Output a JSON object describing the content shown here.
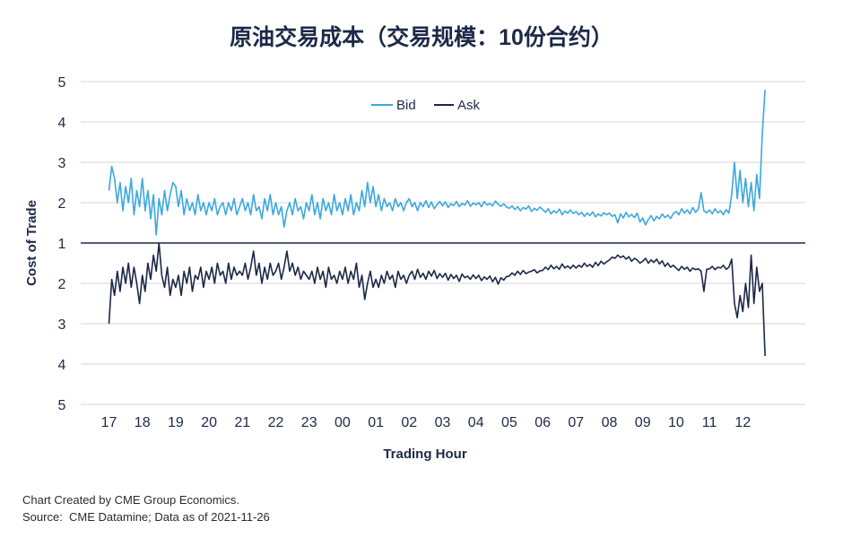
{
  "chart_data": {
    "type": "line",
    "title": "原油交易成本（交易规模：10份合约）",
    "xlabel": "Trading Hour",
    "ylabel": "Cost of Trade",
    "x_tick_labels": [
      "17",
      "18",
      "19",
      "20",
      "21",
      "22",
      "23",
      "00",
      "01",
      "02",
      "03",
      "04",
      "05",
      "06",
      "07",
      "08",
      "09",
      "10",
      "11",
      "12"
    ],
    "y_tick_labels": [
      "5",
      "4",
      "3",
      "2",
      "1",
      "2",
      "3",
      "4",
      "5"
    ],
    "ylim": [
      1,
      5
    ],
    "grid": true,
    "legend_position": "top-center",
    "x": [
      "17:00",
      "17:05",
      "17:10",
      "17:15",
      "17:20",
      "17:25",
      "17:30",
      "17:35",
      "17:40",
      "17:45",
      "17:50",
      "17:55",
      "18:00",
      "18:05",
      "18:10",
      "18:15",
      "18:20",
      "18:25",
      "18:30",
      "18:35",
      "18:40",
      "18:45",
      "18:50",
      "18:55",
      "19:00",
      "19:05",
      "19:10",
      "19:15",
      "19:20",
      "19:25",
      "19:30",
      "19:35",
      "19:40",
      "19:45",
      "19:50",
      "19:55",
      "20:00",
      "20:05",
      "20:10",
      "20:15",
      "20:20",
      "20:25",
      "20:30",
      "20:35",
      "20:40",
      "20:45",
      "20:50",
      "20:55",
      "21:00",
      "21:05",
      "21:10",
      "21:15",
      "21:20",
      "21:25",
      "21:30",
      "21:35",
      "21:40",
      "21:45",
      "21:50",
      "21:55",
      "22:00",
      "22:05",
      "22:10",
      "22:15",
      "22:20",
      "22:25",
      "22:30",
      "22:35",
      "22:40",
      "22:45",
      "22:50",
      "22:55",
      "23:00",
      "23:05",
      "23:10",
      "23:15",
      "23:20",
      "23:25",
      "23:30",
      "23:35",
      "23:40",
      "23:45",
      "23:50",
      "23:55",
      "00:00",
      "00:05",
      "00:10",
      "00:15",
      "00:20",
      "00:25",
      "00:30",
      "00:35",
      "00:40",
      "00:45",
      "00:50",
      "00:55",
      "01:00",
      "01:05",
      "01:10",
      "01:15",
      "01:20",
      "01:25",
      "01:30",
      "01:35",
      "01:40",
      "01:45",
      "01:50",
      "01:55",
      "02:00",
      "02:05",
      "02:10",
      "02:15",
      "02:20",
      "02:25",
      "02:30",
      "02:35",
      "02:40",
      "02:45",
      "02:50",
      "02:55",
      "03:00",
      "03:05",
      "03:10",
      "03:15",
      "03:20",
      "03:25",
      "03:30",
      "03:35",
      "03:40",
      "03:45",
      "03:50",
      "03:55",
      "04:00",
      "04:05",
      "04:10",
      "04:15",
      "04:20",
      "04:25",
      "04:30",
      "04:35",
      "04:40",
      "04:45",
      "04:50",
      "04:55",
      "05:00",
      "05:05",
      "05:10",
      "05:15",
      "05:20",
      "05:25",
      "05:30",
      "05:35",
      "05:40",
      "05:45",
      "05:50",
      "05:55",
      "06:00",
      "06:05",
      "06:10",
      "06:15",
      "06:20",
      "06:25",
      "06:30",
      "06:35",
      "06:40",
      "06:45",
      "06:50",
      "06:55",
      "07:00",
      "07:05",
      "07:10",
      "07:15",
      "07:20",
      "07:25",
      "07:30",
      "07:35",
      "07:40",
      "07:45",
      "07:50",
      "07:55",
      "08:00",
      "08:05",
      "08:10",
      "08:15",
      "08:20",
      "08:25",
      "08:30",
      "08:35",
      "08:40",
      "08:45",
      "08:50",
      "08:55",
      "09:00",
      "09:05",
      "09:10",
      "09:15",
      "09:20",
      "09:25",
      "09:30",
      "09:35",
      "09:40",
      "09:45",
      "09:50",
      "09:55",
      "10:00",
      "10:05",
      "10:10",
      "10:15",
      "10:20",
      "10:25",
      "10:30",
      "10:35",
      "10:40",
      "10:45",
      "10:50",
      "10:55",
      "11:00",
      "11:05",
      "11:10",
      "11:15",
      "11:20",
      "11:25",
      "11:30",
      "11:35",
      "11:40",
      "11:45",
      "11:50",
      "11:55",
      "12:00",
      "12:05",
      "12:10",
      "12:15",
      "12:20",
      "12:25",
      "12:30",
      "12:35",
      "12:40"
    ],
    "series": [
      {
        "name": "Bid",
        "color": "#3ba8df",
        "y_direction": "up",
        "values": [
          2.3,
          2.9,
          2.6,
          2.0,
          2.5,
          1.8,
          2.4,
          2.0,
          2.6,
          1.7,
          2.3,
          1.9,
          2.6,
          1.8,
          2.3,
          1.6,
          2.2,
          1.2,
          2.1,
          1.7,
          2.3,
          1.8,
          2.2,
          2.5,
          2.4,
          1.9,
          2.3,
          1.7,
          2.1,
          1.8,
          2.0,
          1.7,
          2.2,
          1.8,
          2.0,
          1.7,
          2.0,
          1.8,
          2.1,
          1.7,
          1.9,
          2.0,
          1.7,
          2.0,
          1.8,
          2.1,
          1.7,
          1.9,
          2.1,
          1.8,
          2.0,
          1.7,
          2.2,
          1.8,
          1.9,
          1.6,
          2.1,
          1.8,
          2.2,
          1.7,
          2.0,
          1.7,
          1.9,
          1.4,
          1.8,
          2.0,
          1.7,
          2.1,
          1.8,
          1.9,
          1.6,
          2.0,
          1.8,
          2.2,
          1.7,
          2.0,
          1.6,
          2.1,
          1.8,
          2.0,
          1.7,
          2.2,
          1.8,
          2.0,
          1.7,
          2.1,
          1.8,
          2.2,
          1.7,
          2.0,
          1.8,
          2.3,
          1.9,
          2.5,
          2.0,
          2.4,
          1.9,
          2.2,
          1.8,
          2.1,
          1.9,
          2.0,
          1.8,
          2.1,
          1.9,
          2.0,
          1.8,
          2.0,
          2.1,
          1.9,
          2.0,
          1.8,
          2.0,
          1.9,
          2.05,
          1.88,
          2.02,
          1.85,
          1.95,
          2.03,
          1.92,
          2.02,
          1.88,
          1.97,
          1.93,
          2.03,
          1.9,
          1.98,
          1.94,
          2.05,
          1.91,
          1.99,
          1.95,
          2.0,
          1.9,
          2.03,
          1.94,
          1.98,
          1.92,
          2.04,
          1.96,
          1.91,
          1.97,
          1.89,
          1.86,
          1.92,
          1.83,
          1.9,
          1.8,
          1.88,
          1.84,
          1.92,
          1.78,
          1.86,
          1.81,
          1.89,
          1.83,
          1.76,
          1.85,
          1.72,
          1.8,
          1.75,
          1.84,
          1.7,
          1.79,
          1.74,
          1.82,
          1.73,
          1.78,
          1.7,
          1.76,
          1.66,
          1.74,
          1.68,
          1.77,
          1.65,
          1.72,
          1.67,
          1.75,
          1.7,
          1.74,
          1.66,
          1.7,
          1.5,
          1.72,
          1.62,
          1.76,
          1.65,
          1.71,
          1.63,
          1.74,
          1.52,
          1.62,
          1.45,
          1.58,
          1.68,
          1.55,
          1.66,
          1.6,
          1.72,
          1.63,
          1.69,
          1.61,
          1.73,
          1.78,
          1.7,
          1.85,
          1.74,
          1.82,
          1.72,
          1.88,
          1.76,
          1.84,
          2.25,
          1.8,
          1.75,
          1.82,
          1.72,
          1.85,
          1.75,
          1.8,
          1.7,
          1.83,
          1.74,
          2.2,
          3.0,
          2.1,
          2.8,
          2.0,
          2.6,
          1.9,
          2.5,
          1.8,
          2.7,
          2.1,
          3.7,
          4.8
        ]
      },
      {
        "name": "Ask",
        "color": "#1b2846",
        "y_direction": "down",
        "values": [
          3.0,
          1.9,
          2.3,
          1.7,
          2.2,
          1.6,
          2.0,
          1.5,
          2.1,
          1.6,
          2.0,
          2.5,
          1.8,
          2.2,
          1.5,
          1.9,
          1.3,
          1.7,
          1.0,
          1.8,
          2.1,
          1.6,
          2.3,
          1.9,
          2.1,
          1.8,
          2.3,
          1.7,
          2.0,
          1.6,
          2.2,
          1.8,
          1.9,
          1.6,
          2.1,
          1.7,
          1.9,
          1.6,
          2.0,
          1.5,
          1.8,
          1.7,
          2.0,
          1.5,
          1.9,
          1.6,
          1.8,
          1.7,
          1.8,
          1.5,
          1.9,
          1.6,
          1.2,
          1.8,
          1.5,
          2.0,
          1.6,
          1.9,
          1.5,
          1.8,
          1.7,
          1.5,
          1.9,
          1.6,
          1.2,
          1.7,
          1.5,
          1.8,
          1.6,
          1.9,
          1.7,
          1.8,
          1.9,
          1.7,
          2.0,
          1.6,
          1.9,
          1.7,
          2.1,
          1.6,
          1.9,
          1.8,
          2.0,
          1.7,
          1.9,
          1.6,
          2.0,
          1.7,
          1.9,
          1.5,
          2.1,
          1.8,
          2.4,
          2.0,
          1.7,
          2.1,
          1.9,
          2.1,
          1.8,
          2.0,
          1.7,
          1.9,
          1.8,
          2.1,
          1.7,
          1.9,
          1.8,
          2.0,
          1.8,
          1.7,
          1.9,
          1.65,
          1.85,
          1.75,
          1.9,
          1.7,
          1.82,
          1.68,
          1.88,
          1.76,
          1.85,
          1.75,
          1.92,
          1.78,
          1.88,
          1.8,
          1.95,
          1.77,
          1.86,
          1.82,
          1.9,
          1.79,
          1.88,
          1.8,
          1.93,
          1.84,
          1.9,
          1.82,
          1.96,
          1.85,
          2.02,
          1.86,
          1.92,
          1.83,
          1.82,
          1.74,
          1.8,
          1.7,
          1.78,
          1.68,
          1.76,
          1.72,
          1.7,
          1.66,
          1.74,
          1.69,
          1.68,
          1.6,
          1.66,
          1.55,
          1.64,
          1.58,
          1.65,
          1.52,
          1.62,
          1.57,
          1.63,
          1.55,
          1.62,
          1.55,
          1.6,
          1.5,
          1.58,
          1.53,
          1.6,
          1.48,
          1.56,
          1.45,
          1.52,
          1.47,
          1.42,
          1.35,
          1.38,
          1.3,
          1.36,
          1.32,
          1.4,
          1.34,
          1.45,
          1.38,
          1.42,
          1.5,
          1.45,
          1.38,
          1.5,
          1.42,
          1.48,
          1.4,
          1.52,
          1.44,
          1.58,
          1.5,
          1.6,
          1.55,
          1.62,
          1.68,
          1.58,
          1.65,
          1.6,
          1.7,
          1.62,
          1.66,
          1.64,
          1.7,
          2.2,
          1.65,
          1.64,
          1.58,
          1.66,
          1.6,
          1.62,
          1.55,
          1.65,
          1.6,
          1.4,
          2.5,
          2.85,
          2.3,
          2.7,
          2.0,
          2.6,
          1.3,
          2.5,
          1.6,
          2.2,
          2.0,
          3.8
        ]
      }
    ]
  },
  "footer": {
    "credit": "Chart Created by CME Group Economics.",
    "source": "Source:  CME Datamine; Data as of 2021-11-26"
  }
}
